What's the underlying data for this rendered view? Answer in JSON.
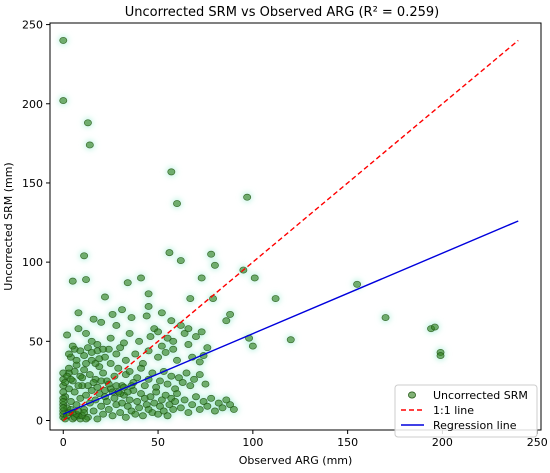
{
  "chart_data": {
    "type": "scatter",
    "title": "Uncorrected SRM vs Observed ARG (R² = 0.259)",
    "xlabel": "Observed ARG (mm)",
    "ylabel": "Uncorrected SRM (mm)",
    "xlim": [
      -7,
      252
    ],
    "ylim": [
      -6,
      251
    ],
    "xticks": [
      0,
      50,
      100,
      150,
      200,
      250
    ],
    "yticks": [
      0,
      50,
      100,
      150,
      200,
      250
    ],
    "grid": false,
    "legend_position": "lower-right",
    "colors": {
      "points": "#2e7d1a",
      "points_edge": "#1e5410",
      "glow": "#b9f2e0",
      "one_to_one": "#ff0000",
      "regression": "#0000dd"
    },
    "series": [
      {
        "name": "Uncorrected SRM",
        "kind": "scatter",
        "points": [
          [
            0,
            240
          ],
          [
            0,
            202
          ],
          [
            13,
            188
          ],
          [
            14,
            174
          ],
          [
            57,
            157
          ],
          [
            60,
            137
          ],
          [
            97,
            141
          ],
          [
            11,
            104
          ],
          [
            12,
            89
          ],
          [
            56,
            106
          ],
          [
            62,
            101
          ],
          [
            78,
            105
          ],
          [
            80,
            98
          ],
          [
            95,
            95
          ],
          [
            101,
            90
          ],
          [
            73,
            90
          ],
          [
            41,
            90
          ],
          [
            34,
            87
          ],
          [
            45,
            80
          ],
          [
            22,
            78
          ],
          [
            45,
            72
          ],
          [
            5,
            88
          ],
          [
            8,
            68
          ],
          [
            67,
            77
          ],
          [
            79,
            77
          ],
          [
            112,
            77
          ],
          [
            88,
            67
          ],
          [
            155,
            86
          ],
          [
            86,
            63
          ],
          [
            120,
            51
          ],
          [
            98,
            52
          ],
          [
            100,
            47
          ],
          [
            170,
            65
          ],
          [
            194,
            58
          ],
          [
            196,
            59
          ],
          [
            199,
            43
          ],
          [
            199,
            41
          ],
          [
            2,
            54
          ],
          [
            6,
            45
          ],
          [
            4,
            40
          ],
          [
            8,
            58
          ],
          [
            12,
            55
          ],
          [
            15,
            50
          ],
          [
            18,
            44
          ],
          [
            22,
            40
          ],
          [
            25,
            52
          ],
          [
            28,
            60
          ],
          [
            30,
            46
          ],
          [
            33,
            38
          ],
          [
            35,
            55
          ],
          [
            38,
            42
          ],
          [
            40,
            50
          ],
          [
            42,
            36
          ],
          [
            45,
            44
          ],
          [
            48,
            58
          ],
          [
            50,
            40
          ],
          [
            52,
            47
          ],
          [
            55,
            52
          ],
          [
            58,
            45
          ],
          [
            60,
            38
          ],
          [
            62,
            60
          ],
          [
            64,
            55
          ],
          [
            66,
            48
          ],
          [
            68,
            40
          ],
          [
            70,
            53
          ],
          [
            72,
            37
          ],
          [
            74,
            41
          ],
          [
            76,
            46
          ],
          [
            20,
            62
          ],
          [
            26,
            67
          ],
          [
            31,
            70
          ],
          [
            16,
            64
          ],
          [
            36,
            65
          ],
          [
            44,
            66
          ],
          [
            52,
            68
          ],
          [
            57,
            63
          ],
          [
            3,
            30
          ],
          [
            5,
            25
          ],
          [
            7,
            35
          ],
          [
            9,
            28
          ],
          [
            11,
            32
          ],
          [
            13,
            22
          ],
          [
            15,
            38
          ],
          [
            17,
            26
          ],
          [
            19,
            34
          ],
          [
            21,
            30
          ],
          [
            23,
            25
          ],
          [
            25,
            36
          ],
          [
            27,
            28
          ],
          [
            29,
            33
          ],
          [
            31,
            22
          ],
          [
            33,
            29
          ],
          [
            35,
            31
          ],
          [
            37,
            24
          ],
          [
            39,
            27
          ],
          [
            41,
            33
          ],
          [
            43,
            22
          ],
          [
            45,
            26
          ],
          [
            47,
            30
          ],
          [
            49,
            21
          ],
          [
            51,
            25
          ],
          [
            53,
            31
          ],
          [
            55,
            23
          ],
          [
            57,
            28
          ],
          [
            59,
            20
          ],
          [
            61,
            27
          ],
          [
            63,
            24
          ],
          [
            65,
            30
          ],
          [
            67,
            22
          ],
          [
            69,
            26
          ],
          [
            72,
            29
          ],
          [
            75,
            23
          ],
          [
            1,
            15
          ],
          [
            2,
            8
          ],
          [
            3,
            20
          ],
          [
            4,
            12
          ],
          [
            5,
            5
          ],
          [
            6,
            18
          ],
          [
            7,
            10
          ],
          [
            8,
            3
          ],
          [
            9,
            14
          ],
          [
            10,
            22
          ],
          [
            11,
            7
          ],
          [
            12,
            16
          ],
          [
            13,
            2
          ],
          [
            14,
            11
          ],
          [
            15,
            19
          ],
          [
            16,
            6
          ],
          [
            17,
            13
          ],
          [
            18,
            1
          ],
          [
            19,
            17
          ],
          [
            20,
            9
          ],
          [
            21,
            4
          ],
          [
            22,
            15
          ],
          [
            23,
            12
          ],
          [
            24,
            7
          ],
          [
            25,
            20
          ],
          [
            26,
            3
          ],
          [
            27,
            14
          ],
          [
            28,
            10
          ],
          [
            29,
            18
          ],
          [
            30,
            5
          ],
          [
            31,
            11
          ],
          [
            32,
            16
          ],
          [
            33,
            2
          ],
          [
            34,
            9
          ],
          [
            35,
            13
          ],
          [
            36,
            6
          ],
          [
            37,
            19
          ],
          [
            38,
            4
          ],
          [
            39,
            12
          ],
          [
            40,
            8
          ],
          [
            41,
            17
          ],
          [
            42,
            3
          ],
          [
            43,
            14
          ],
          [
            44,
            10
          ],
          [
            45,
            7
          ],
          [
            46,
            15
          ],
          [
            47,
            5
          ],
          [
            48,
            11
          ],
          [
            49,
            18
          ],
          [
            50,
            4
          ],
          [
            51,
            9
          ],
          [
            52,
            13
          ],
          [
            53,
            6
          ],
          [
            54,
            16
          ],
          [
            55,
            3
          ],
          [
            56,
            10
          ],
          [
            57,
            14
          ],
          [
            58,
            7
          ],
          [
            59,
            12
          ],
          [
            60,
            17
          ],
          [
            62,
            8
          ],
          [
            64,
            13
          ],
          [
            66,
            5
          ],
          [
            68,
            10
          ],
          [
            70,
            15
          ],
          [
            72,
            7
          ],
          [
            74,
            12
          ],
          [
            76,
            9
          ],
          [
            78,
            14
          ],
          [
            80,
            6
          ],
          [
            82,
            11
          ],
          [
            84,
            8
          ],
          [
            86,
            13
          ],
          [
            88,
            10
          ],
          [
            90,
            7
          ],
          [
            0,
            2
          ],
          [
            0,
            6
          ],
          [
            0,
            10
          ],
          [
            0,
            14
          ],
          [
            0,
            18
          ],
          [
            0,
            22
          ],
          [
            0,
            26
          ],
          [
            0,
            30
          ],
          [
            0,
            4
          ],
          [
            0,
            8
          ],
          [
            0,
            12
          ],
          [
            1,
            1
          ],
          [
            2,
            3
          ],
          [
            3,
            5
          ],
          [
            4,
            7
          ],
          [
            5,
            1
          ],
          [
            6,
            2
          ],
          [
            7,
            4
          ],
          [
            8,
            6
          ],
          [
            9,
            1
          ],
          [
            10,
            3
          ],
          [
            11,
            5
          ],
          [
            12,
            1
          ],
          [
            1,
            24
          ],
          [
            2,
            28
          ],
          [
            3,
            33
          ],
          [
            4,
            26
          ],
          [
            6,
            31
          ],
          [
            8,
            22
          ],
          [
            10,
            27
          ],
          [
            12,
            36
          ],
          [
            14,
            29
          ],
          [
            16,
            24
          ],
          [
            18,
            21
          ],
          [
            20,
            25
          ],
          [
            22,
            19
          ],
          [
            24,
            23
          ],
          [
            26,
            18
          ],
          [
            28,
            22
          ],
          [
            30,
            17
          ],
          [
            32,
            21
          ],
          [
            34,
            18
          ],
          [
            36,
            22
          ],
          [
            18,
            48
          ],
          [
            24,
            45
          ],
          [
            28,
            42
          ],
          [
            32,
            49
          ],
          [
            46,
            53
          ],
          [
            50,
            56
          ],
          [
            54,
            43
          ],
          [
            58,
            50
          ],
          [
            66,
            58
          ],
          [
            73,
            56
          ],
          [
            3,
            42
          ],
          [
            5,
            47
          ],
          [
            7,
            38
          ],
          [
            9,
            44
          ],
          [
            11,
            41
          ],
          [
            13,
            46
          ],
          [
            15,
            43
          ],
          [
            17,
            36
          ],
          [
            19,
            39
          ],
          [
            21,
            45
          ]
        ]
      },
      {
        "name": "1:1 line",
        "kind": "line",
        "dash": true,
        "x": [
          0,
          240
        ],
        "y": [
          0,
          240
        ]
      },
      {
        "name": "Regression line",
        "kind": "line",
        "dash": false,
        "x": [
          0,
          240
        ],
        "y": [
          4,
          126
        ]
      }
    ]
  }
}
